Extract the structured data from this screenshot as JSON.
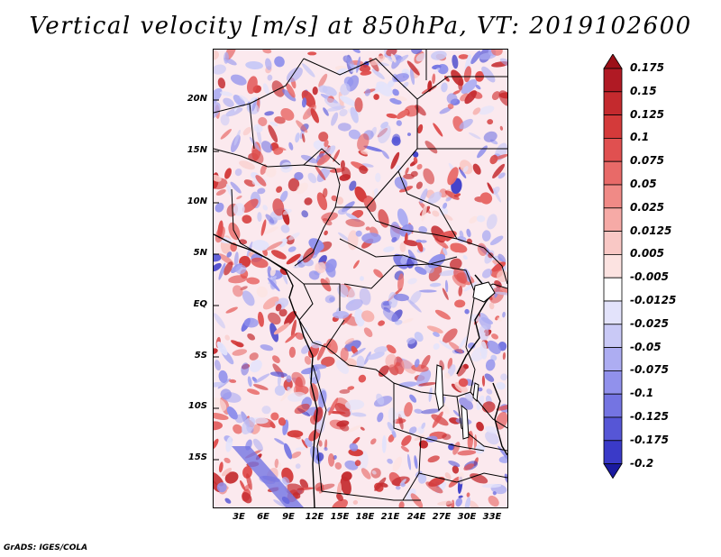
{
  "title": "Vertical velocity [m/s] at 850hPa, VT: 2019102600",
  "footer": "GrADS: IGES/COLA",
  "map": {
    "region": "Central Africa",
    "variable": "Vertical velocity",
    "units": "m/s",
    "level": "850hPa",
    "valid_time": "2019102600"
  },
  "axes": {
    "lat_labels": [
      "20N",
      "15N",
      "10N",
      "5N",
      "EQ",
      "5S",
      "10S",
      "15S"
    ],
    "lon_labels": [
      "3E",
      "6E",
      "9E",
      "12E",
      "15E",
      "18E",
      "21E",
      "24E",
      "27E",
      "30E",
      "33E"
    ]
  },
  "colorbar": {
    "levels": [
      {
        "label": "0.175",
        "color": "#b01a24"
      },
      {
        "label": "0.15",
        "color": "#c42a2e"
      },
      {
        "label": "0.125",
        "color": "#d43a3a"
      },
      {
        "label": "0.1",
        "color": "#e05050"
      },
      {
        "label": "0.075",
        "color": "#e86a68"
      },
      {
        "label": "0.05",
        "color": "#f08a86"
      },
      {
        "label": "0.025",
        "color": "#f6aaa6"
      },
      {
        "label": "0.0125",
        "color": "#f9c8c5"
      },
      {
        "label": "0.005",
        "color": "#fce3e1"
      },
      {
        "label": "-0.005",
        "color": "#ffffff"
      },
      {
        "label": "-0.0125",
        "color": "#e3e3fb"
      },
      {
        "label": "-0.025",
        "color": "#c9c9f6"
      },
      {
        "label": "-0.05",
        "color": "#adadf2"
      },
      {
        "label": "-0.075",
        "color": "#9191ec"
      },
      {
        "label": "-0.1",
        "color": "#7474e2"
      },
      {
        "label": "-0.125",
        "color": "#5656d6"
      },
      {
        "label": "-0.175",
        "color": "#3a3ac8"
      },
      {
        "label": "-0.2",
        "color": "#2424b4"
      }
    ],
    "low_end_color": "#1a1aa0",
    "high_end_color": "#9c1018"
  }
}
